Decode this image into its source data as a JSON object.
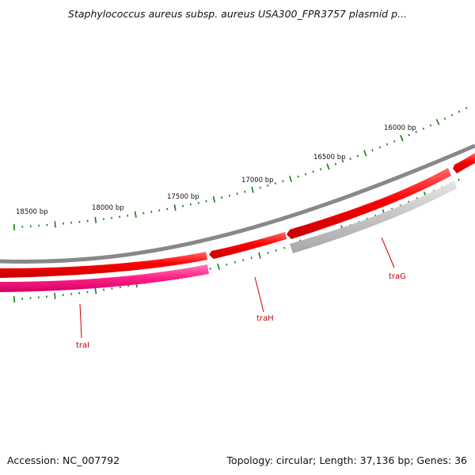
{
  "title": "Staphylococcus aureus subsp. aureus USA300_FPR3757 plasmid p...",
  "footer": {
    "accession": "Accession: NC_007792",
    "summary": "Topology: circular; Length: 37,136 bp; Genes: 36"
  },
  "colors": {
    "backbone": "#888888",
    "forward_gene": "#ff0000",
    "reverse_gene_grey": "#c8c8c8",
    "reverse_gene_pink": "#ff2a8c",
    "tick": "#1a7a1a",
    "label_line": "#cc0000"
  },
  "scale_labels": [
    "18500 bp",
    "18000 bp",
    "17500 bp",
    "17000 bp",
    "16500 bp",
    "16000 bp"
  ],
  "genes": [
    {
      "name": "traI"
    },
    {
      "name": "traH"
    },
    {
      "name": "traG"
    }
  ]
}
